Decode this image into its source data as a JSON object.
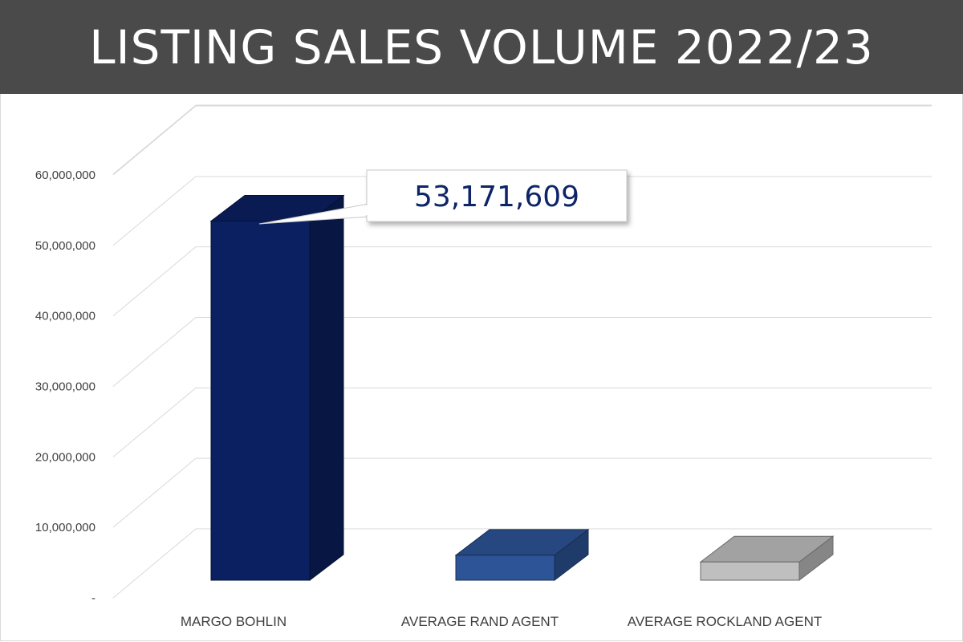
{
  "header": {
    "title": "LISTING SALES VOLUME 2022/23"
  },
  "chart_data": {
    "type": "bar",
    "title": "LISTING SALES VOLUME 2022/23",
    "xlabel": "",
    "ylabel": "",
    "categories": [
      "MARGO BOHLIN",
      "AVERAGE RAND AGENT",
      "AVERAGE ROCKLAND AGENT"
    ],
    "values": [
      53171609,
      3700000,
      2700000
    ],
    "ylim": [
      0,
      60000000
    ],
    "yticks": [
      0,
      10000000,
      20000000,
      30000000,
      40000000,
      50000000,
      60000000
    ],
    "ytick_labels": [
      "-",
      "10,000,000",
      "20,000,000",
      "30,000,000",
      "40,000,000",
      "50,000,000",
      "60,000,000"
    ],
    "grid": true,
    "legend": "none",
    "style": "3d-bar",
    "colors": [
      "#0a2060",
      "#2d5496",
      "#bfbfbf"
    ],
    "annotation": {
      "category": "MARGO BOHLIN",
      "text": "53,171,609"
    }
  }
}
